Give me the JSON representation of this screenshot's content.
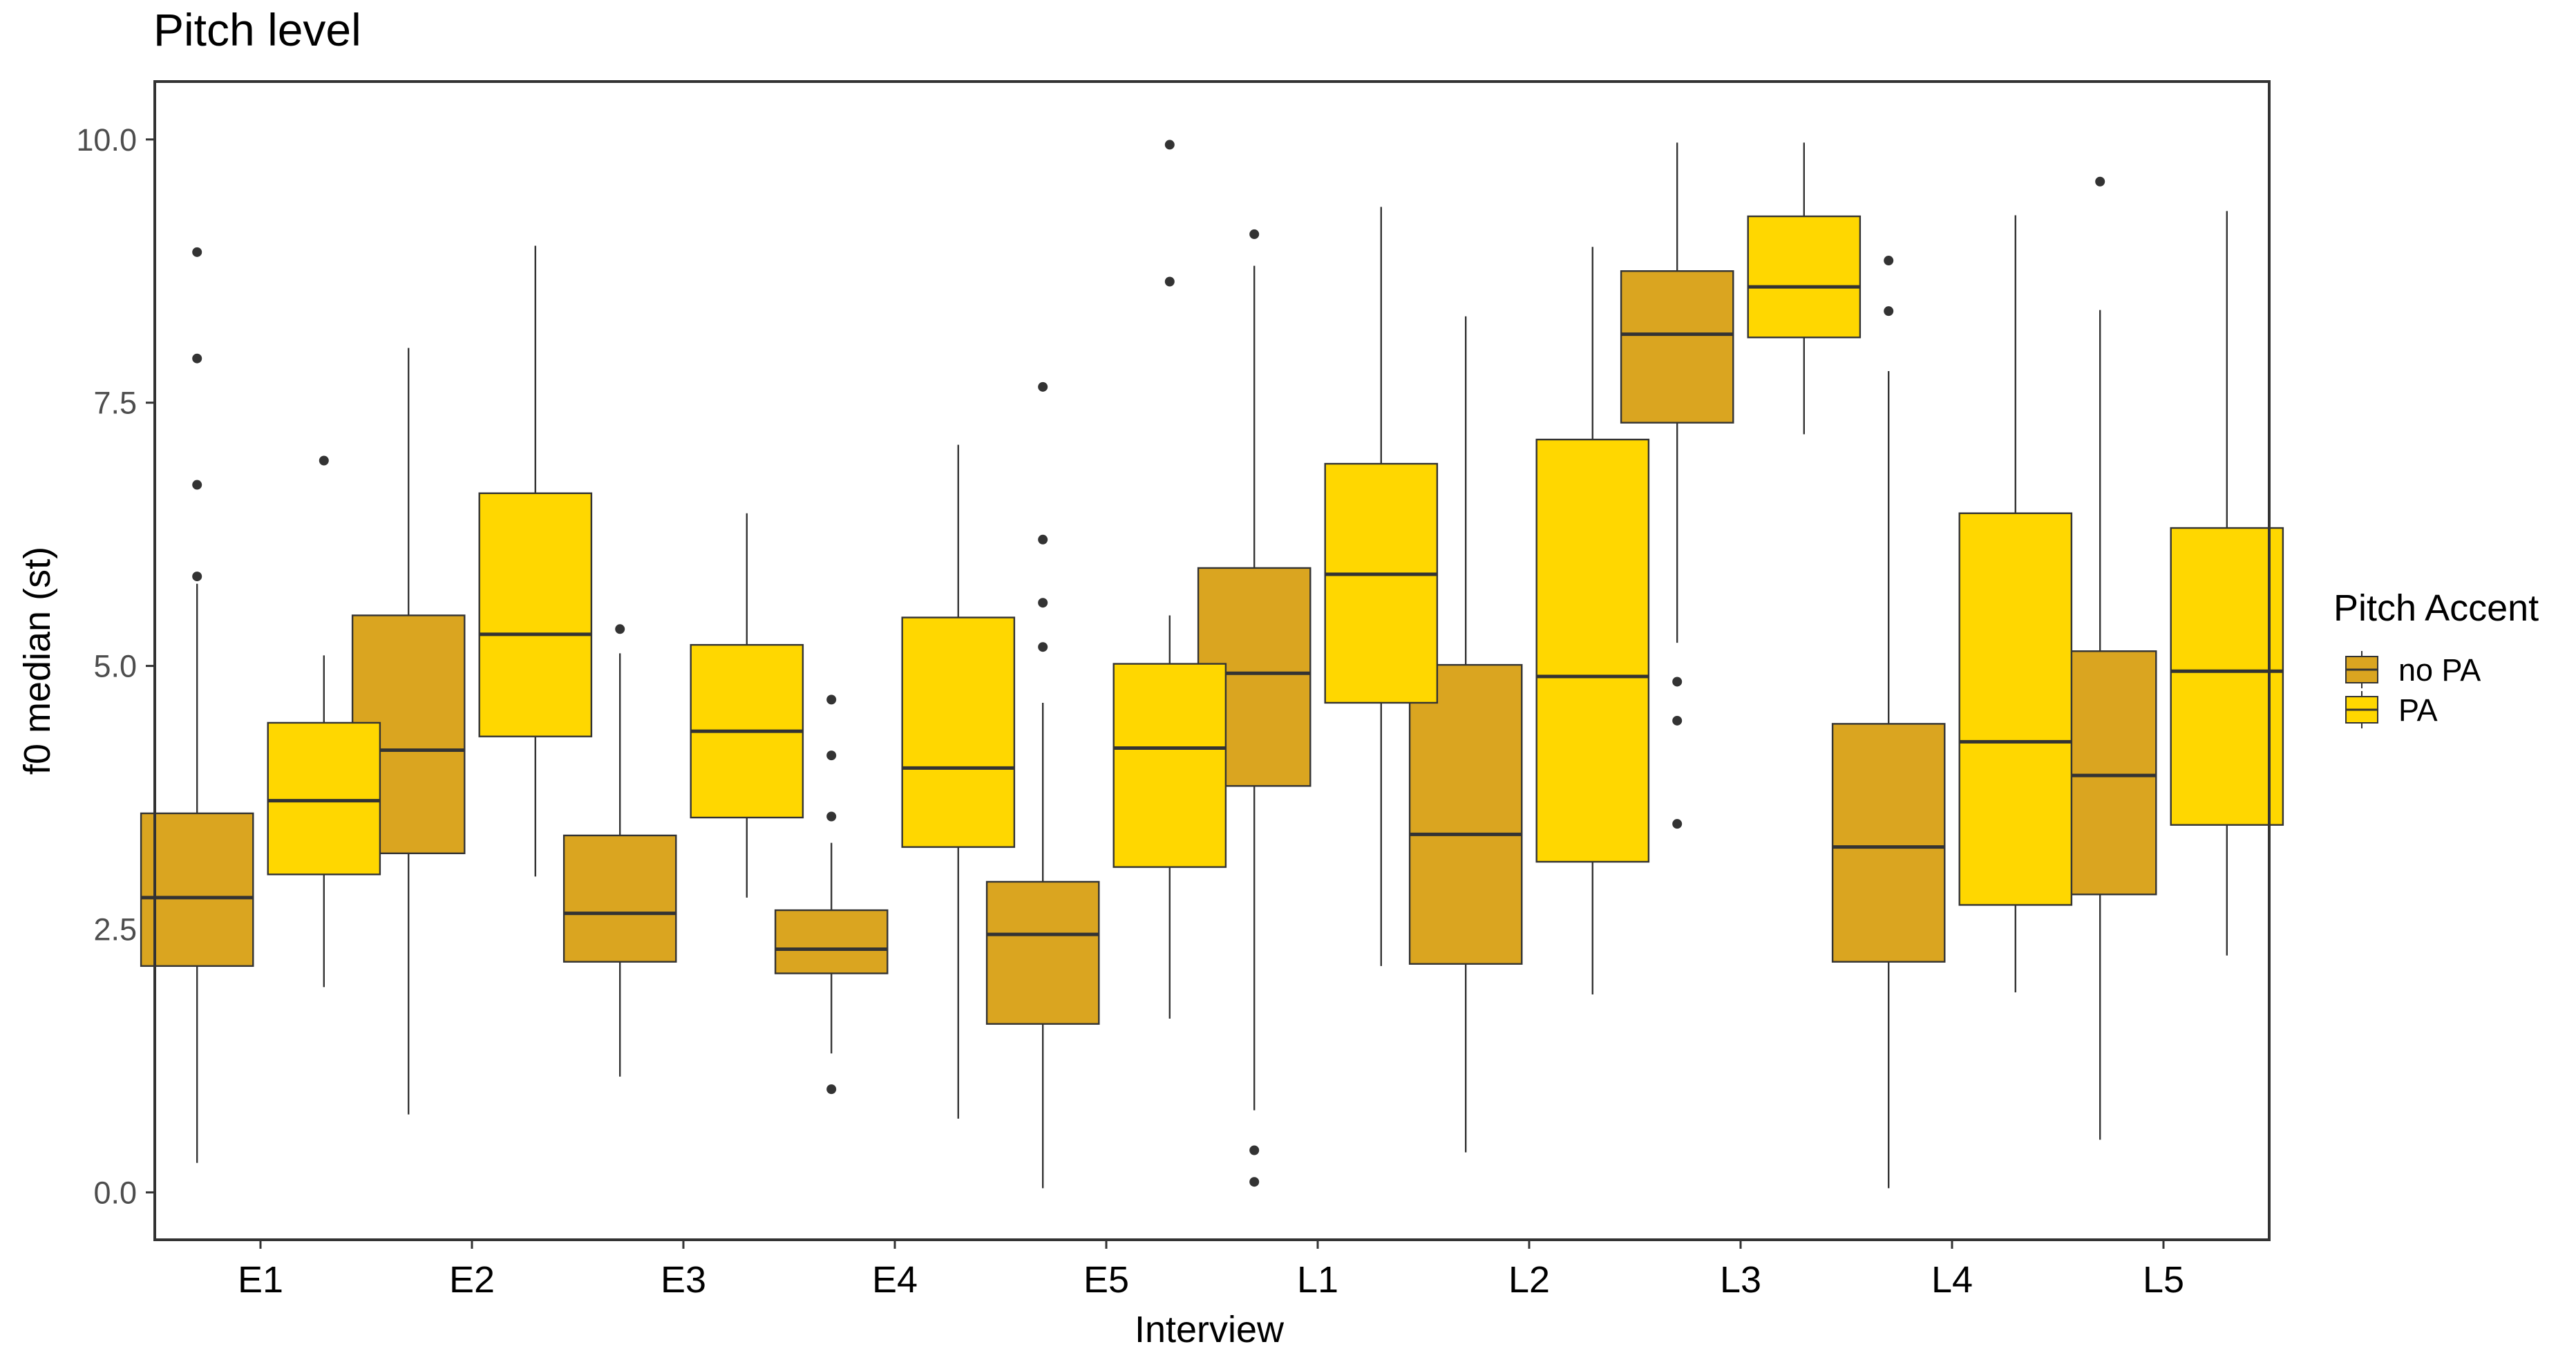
{
  "chart_data": {
    "type": "boxplot",
    "title": "Pitch level",
    "xlabel": "Interview",
    "ylabel": "f0 median (st)",
    "ylim": [
      -0.45,
      10.55
    ],
    "yticks": [
      0.0,
      2.5,
      5.0,
      7.5,
      10.0
    ],
    "ytick_labels": [
      "0.0",
      "2.5",
      "5.0",
      "7.5",
      "10.0"
    ],
    "categories": [
      "E1",
      "E2",
      "E3",
      "E4",
      "E5",
      "L1",
      "L2",
      "L3",
      "L4",
      "L5"
    ],
    "grid": false,
    "legend": {
      "title": "Pitch Accent",
      "position": "right",
      "entries": [
        {
          "label": "no PA",
          "color": "#DAA520"
        },
        {
          "label": "PA",
          "color": "#FFD700"
        }
      ]
    },
    "series": [
      {
        "name": "no PA",
        "color": "#DAA520",
        "boxes": [
          {
            "whisker_low": 0.28,
            "q1": 2.15,
            "median": 2.8,
            "q3": 3.6,
            "whisker_high": 5.78,
            "outliers": [
              5.85,
              6.72,
              7.92,
              8.93
            ]
          },
          {
            "whisker_low": 0.74,
            "q1": 3.22,
            "median": 4.2,
            "q3": 5.48,
            "whisker_high": 8.02,
            "outliers": []
          },
          {
            "whisker_low": 1.1,
            "q1": 2.19,
            "median": 2.65,
            "q3": 3.39,
            "whisker_high": 5.12,
            "outliers": [
              5.35
            ]
          },
          {
            "whisker_low": 1.32,
            "q1": 2.08,
            "median": 2.31,
            "q3": 2.68,
            "whisker_high": 3.32,
            "outliers": [
              0.98,
              3.57,
              4.15,
              4.68
            ]
          },
          {
            "whisker_low": 0.04,
            "q1": 1.6,
            "median": 2.45,
            "q3": 2.95,
            "whisker_high": 4.65,
            "outliers": [
              5.18,
              5.6,
              6.2,
              7.65
            ]
          },
          {
            "whisker_low": 0.78,
            "q1": 3.86,
            "median": 4.93,
            "q3": 5.93,
            "whisker_high": 8.8,
            "outliers": [
              0.1,
              0.4,
              9.1
            ]
          },
          {
            "whisker_low": 0.38,
            "q1": 2.17,
            "median": 3.4,
            "q3": 5.01,
            "whisker_high": 8.32,
            "outliers": []
          },
          {
            "whisker_low": 5.22,
            "q1": 7.31,
            "median": 8.15,
            "q3": 8.75,
            "whisker_high": 9.97,
            "outliers": [
              3.5,
              4.48,
              4.85
            ]
          },
          {
            "whisker_low": 0.04,
            "q1": 2.19,
            "median": 3.28,
            "q3": 4.45,
            "whisker_high": 7.8,
            "outliers": [
              8.37,
              8.85
            ]
          },
          {
            "whisker_low": 0.5,
            "q1": 2.83,
            "median": 3.96,
            "q3": 5.14,
            "whisker_high": 8.38,
            "outliers": [
              9.6
            ]
          }
        ]
      },
      {
        "name": "PA",
        "color": "#FFD700",
        "boxes": [
          {
            "whisker_low": 1.95,
            "q1": 3.02,
            "median": 3.72,
            "q3": 4.46,
            "whisker_high": 5.1,
            "outliers": [
              6.95
            ]
          },
          {
            "whisker_low": 3.0,
            "q1": 4.33,
            "median": 5.3,
            "q3": 6.64,
            "whisker_high": 8.99,
            "outliers": []
          },
          {
            "whisker_low": 2.8,
            "q1": 3.56,
            "median": 4.38,
            "q3": 5.2,
            "whisker_high": 6.45,
            "outliers": []
          },
          {
            "whisker_low": 0.7,
            "q1": 3.28,
            "median": 4.03,
            "q3": 5.46,
            "whisker_high": 7.1,
            "outliers": []
          },
          {
            "whisker_low": 1.65,
            "q1": 3.09,
            "median": 4.22,
            "q3": 5.02,
            "whisker_high": 5.48,
            "outliers": [
              8.65,
              9.95
            ]
          },
          {
            "whisker_low": 2.15,
            "q1": 4.65,
            "median": 5.87,
            "q3": 6.92,
            "whisker_high": 9.36,
            "outliers": []
          },
          {
            "whisker_low": 1.88,
            "q1": 3.14,
            "median": 4.9,
            "q3": 7.15,
            "whisker_high": 8.98,
            "outliers": []
          },
          {
            "whisker_low": 7.2,
            "q1": 8.12,
            "median": 8.6,
            "q3": 9.27,
            "whisker_high": 9.97,
            "outliers": []
          },
          {
            "whisker_low": 1.9,
            "q1": 2.73,
            "median": 4.28,
            "q3": 6.45,
            "whisker_high": 9.28,
            "outliers": []
          },
          {
            "whisker_low": 2.25,
            "q1": 3.49,
            "median": 4.95,
            "q3": 6.31,
            "whisker_high": 9.32,
            "outliers": []
          }
        ]
      }
    ]
  }
}
